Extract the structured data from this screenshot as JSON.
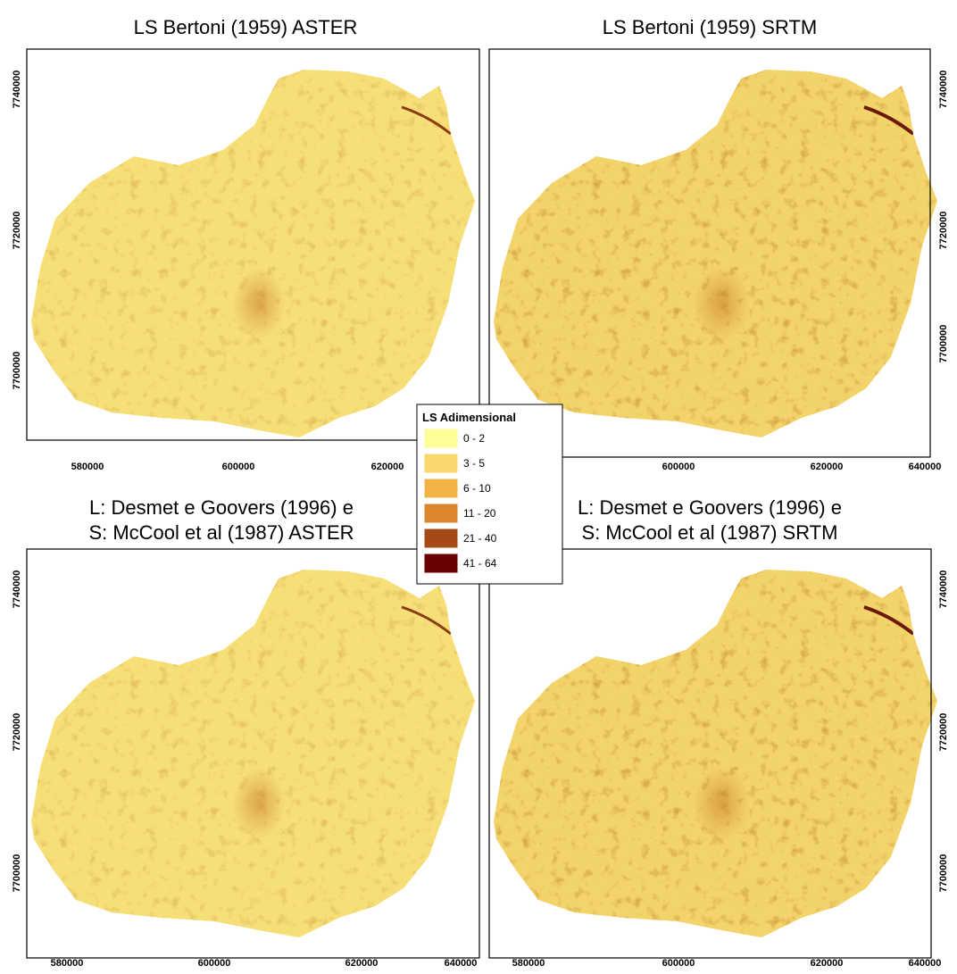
{
  "panels": [
    {
      "title": [
        "LS Bertoni (1959) ASTER"
      ],
      "x_ticks": [
        580000,
        600000,
        620000
      ],
      "y_ticks": [
        7740000,
        7720000,
        7700000
      ]
    },
    {
      "title": [
        "LS Bertoni (1959) SRTM"
      ],
      "x_ticks": [
        600000,
        620000,
        640000
      ],
      "y_ticks": [
        7740000,
        7720000,
        7700000
      ]
    },
    {
      "title": [
        "L: Desmet e Goovers (1996) e",
        "S: McCool et al (1987) ASTER"
      ],
      "x_ticks": [
        580000,
        600000,
        620000,
        640000
      ],
      "y_ticks": [
        7740000,
        7720000,
        7700000
      ]
    },
    {
      "title": [
        "L: Desmet e Goovers (1996) e",
        "S: McCool et al (1987) SRTM"
      ],
      "x_ticks": [
        580000,
        600000,
        620000,
        640000
      ],
      "y_ticks": [
        7740000,
        7720000,
        7700000
      ]
    }
  ],
  "legend": {
    "title": "LS Adimensional",
    "items": [
      {
        "label": "0 - 2",
        "color": "#ffff99"
      },
      {
        "label": "3 - 5",
        "color": "#f9d96c"
      },
      {
        "label": "6 - 10",
        "color": "#f1b444"
      },
      {
        "label": "11 - 20",
        "color": "#db852c"
      },
      {
        "label": "21 - 40",
        "color": "#a54a16"
      },
      {
        "label": "41 - 64",
        "color": "#6b0202"
      }
    ]
  }
}
